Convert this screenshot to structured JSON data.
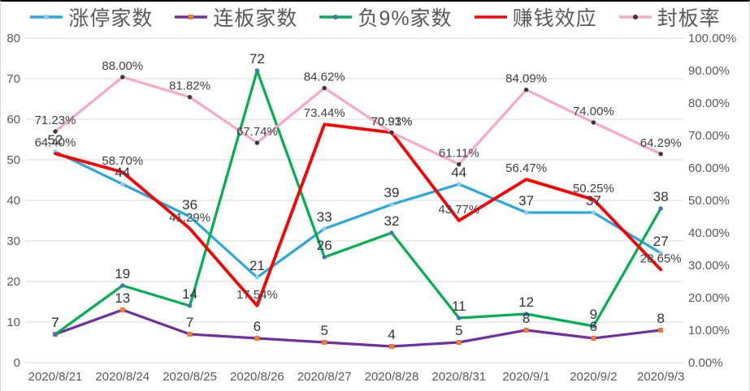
{
  "chart_data": {
    "type": "line",
    "title": "",
    "legend_position": "top",
    "grid": true,
    "categories": [
      "2020/8/21",
      "2020/8/24",
      "2020/8/25",
      "2020/8/26",
      "2020/8/27",
      "2020/8/28",
      "2020/8/31",
      "2020/9/1",
      "2020/9/2",
      "2020/9/3"
    ],
    "series": [
      {
        "key": "limit-up-count",
        "name": "涨停家数",
        "axis": "left",
        "color": "#29A7DF",
        "marker_shape": "circle",
        "marker_color": "#8CCBEC",
        "values": [
          52,
          44,
          36,
          21,
          33,
          39,
          44,
          37,
          37,
          27
        ],
        "labels": [
          "52",
          "44",
          "36",
          "21",
          "33",
          "39",
          "44",
          "37",
          "37",
          "27"
        ]
      },
      {
        "key": "consecutive-board-count",
        "name": "连板家数",
        "axis": "left",
        "color": "#7030A0",
        "marker_shape": "square",
        "marker_color": "#ED7D31",
        "values": [
          7,
          13,
          7,
          6,
          5,
          4,
          5,
          8,
          6,
          8
        ],
        "labels": [
          "7",
          "13",
          "7",
          "6",
          "5",
          "4",
          "5",
          "8",
          "6",
          "8"
        ]
      },
      {
        "key": "negative-9pct-count",
        "name": "负9%家数",
        "axis": "left",
        "color": "#00B050",
        "marker_shape": "circle",
        "marker_color": "#4472C4",
        "values": [
          7,
          19,
          14,
          72,
          26,
          32,
          11,
          12,
          9,
          38
        ],
        "labels": [
          "7",
          "19",
          "14",
          "72",
          "26",
          "32",
          "11",
          "12",
          "9",
          "38"
        ]
      },
      {
        "key": "money-making-effect",
        "name": "赚钱效应",
        "axis": "right",
        "color": "#FF0000",
        "marker_shape": "none",
        "marker_color": "#FF0000",
        "values": [
          64.4,
          58.7,
          41.29,
          17.54,
          73.44,
          70.91,
          43.77,
          56.47,
          50.25,
          28.65
        ],
        "labels": [
          "64.40%",
          "58.70%",
          "41.29%",
          "17.54%",
          "73.44%",
          "70.91%",
          "43.77%",
          "56.47%",
          "50.25%",
          "28.65%"
        ]
      },
      {
        "key": "seal-rate",
        "name": "封板率",
        "axis": "right",
        "color": "#F7A8CB",
        "marker_shape": "circle",
        "marker_color": "#3B3838",
        "values": [
          71.23,
          88.0,
          81.82,
          67.74,
          84.62,
          70.93,
          61.11,
          84.09,
          74.0,
          64.29
        ],
        "labels": [
          "71.23%",
          "88.00%",
          "81.82%",
          "67.74%",
          "84.62%",
          "70.93%",
          "61.11%",
          "84.09%",
          "74.00%",
          "64.29%"
        ]
      }
    ],
    "left_axis": {
      "min": 0,
      "max": 80,
      "tick_labels": [
        "80",
        "70",
        "60",
        "50",
        "40",
        "30",
        "20",
        "10",
        "0"
      ]
    },
    "right_axis": {
      "min": 0,
      "max": 100,
      "tick_labels": [
        "100.00%",
        "90.00%",
        "80.00%",
        "70.00%",
        "60.00%",
        "50.00%",
        "40.00%",
        "30.00%",
        "20.00%",
        "10.00%",
        "0.00%"
      ]
    },
    "colors": {
      "gridline": "#D9D9D9",
      "axis_text": "#595959",
      "count_label": "#333333",
      "pct_label": "#404040",
      "border_top": "#000000",
      "border_side": "#D9D9D9",
      "background": "#FFFFFF"
    }
  }
}
